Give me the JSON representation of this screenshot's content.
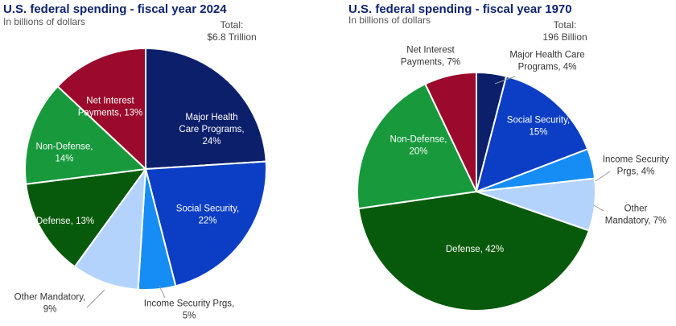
{
  "chart_data": [
    {
      "type": "pie",
      "title": "U.S. federal spending - fiscal year 2024",
      "subtitle": "In billions of dollars",
      "total_label": [
        "Total:",
        "$6.8 Trillion"
      ],
      "slices": [
        {
          "label": [
            "Major Health",
            "Care Programs,",
            "24%"
          ],
          "value": 24,
          "color": "#0b1f6b"
        },
        {
          "label": [
            "Social Security,",
            "22%"
          ],
          "value": 22,
          "color": "#0b3ec4"
        },
        {
          "label": [
            "Income Security Prgs,",
            "5%"
          ],
          "value": 5,
          "color": "#168cf5"
        },
        {
          "label": [
            "Other Mandatory,",
            "9%"
          ],
          "value": 9,
          "color": "#b3d3fc"
        },
        {
          "label": [
            "Defense, 13%"
          ],
          "value": 13,
          "color": "#075a0b"
        },
        {
          "label": [
            "Non-Defense,",
            "14%"
          ],
          "value": 14,
          "color": "#17993c"
        },
        {
          "label": [
            "Net Interest",
            "Payments, 13%"
          ],
          "value": 13,
          "color": "#9b0a2c"
        }
      ]
    },
    {
      "type": "pie",
      "title": "U.S. federal spending - fiscal year 1970",
      "subtitle": "In billions of dollars",
      "total_label": [
        "Total:",
        "196 Billion"
      ],
      "slices": [
        {
          "label": [
            "Major Health Care",
            "Programs, 4%"
          ],
          "value": 4,
          "color": "#0b1f6b"
        },
        {
          "label": [
            "Social Security,",
            "15%"
          ],
          "value": 15,
          "color": "#0b3ec4"
        },
        {
          "label": [
            "Income Security",
            "Prgs, 4%"
          ],
          "value": 4,
          "color": "#168cf5"
        },
        {
          "label": [
            "Other",
            "Mandatory, 7%"
          ],
          "value": 7,
          "color": "#b3d3fc"
        },
        {
          "label": [
            "Defense, 42%"
          ],
          "value": 42,
          "color": "#075a0b"
        },
        {
          "label": [
            "Non-Defense,",
            "20%"
          ],
          "value": 20,
          "color": "#17993c"
        },
        {
          "label": [
            "Net Interest",
            "Payments, 7%"
          ],
          "value": 7,
          "color": "#9b0a2c"
        }
      ]
    }
  ]
}
